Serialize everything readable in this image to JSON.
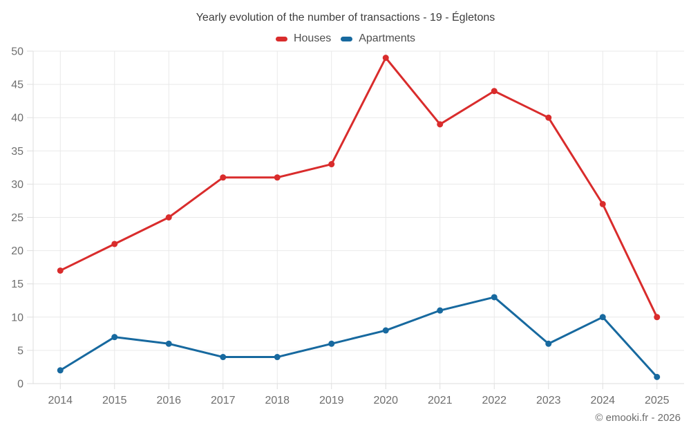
{
  "chart_data": {
    "type": "line",
    "title": "Yearly evolution of the number of transactions - 19 - Égletons",
    "xlabel": "",
    "ylabel": "",
    "categories": [
      "2014",
      "2015",
      "2016",
      "2017",
      "2018",
      "2019",
      "2020",
      "2021",
      "2022",
      "2023",
      "2024",
      "2025"
    ],
    "series": [
      {
        "name": "Houses",
        "color": "#d92c2c",
        "values": [
          17,
          21,
          25,
          31,
          31,
          33,
          49,
          39,
          44,
          40,
          27,
          10
        ]
      },
      {
        "name": "Apartments",
        "color": "#17699f",
        "values": [
          2,
          7,
          6,
          4,
          4,
          6,
          8,
          11,
          13,
          6,
          10,
          1
        ]
      }
    ],
    "ylim": [
      0,
      50
    ],
    "ytick_step": 5,
    "yticks": [
      0,
      5,
      10,
      15,
      20,
      25,
      30,
      35,
      40,
      45,
      50
    ],
    "grid": true,
    "legend_position": "top"
  },
  "footer": {
    "credit": "© emooki.fr - 2026"
  },
  "theme": {
    "background": "#ffffff",
    "grid_color": "#e9e9e9",
    "axis_border_color": "#dedede",
    "tick_label_color": "#6e6e6e",
    "title_color": "#3d3d3d",
    "legend_label_color": "#4f4f4f"
  }
}
